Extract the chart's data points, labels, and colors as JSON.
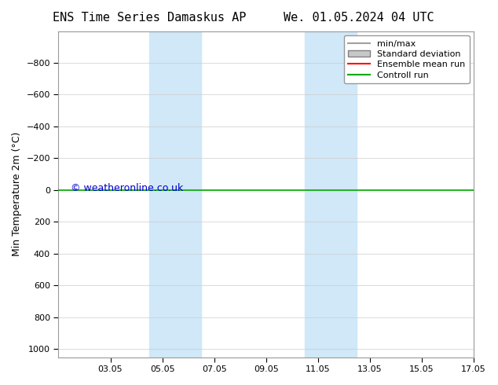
{
  "title_left": "ENS Time Series Damaskus AP",
  "title_right": "We. 01.05.2024 04 UTC",
  "ylabel": "Min Temperature 2m (°C)",
  "ylim": [
    -1000,
    1050
  ],
  "yticks": [
    -800,
    -600,
    -400,
    -200,
    0,
    200,
    400,
    600,
    800,
    1000
  ],
  "xtick_labels": [
    "03.05",
    "05.05",
    "07.05",
    "09.05",
    "11.05",
    "13.05",
    "15.05",
    "17.05"
  ],
  "xtick_positions": [
    2,
    4,
    6,
    8,
    10,
    12,
    14,
    16
  ],
  "xlim": [
    0,
    16
  ],
  "shaded_bands": [
    {
      "x_start": 3.5,
      "x_end": 5.5
    },
    {
      "x_start": 9.5,
      "x_end": 11.5
    }
  ],
  "line_value": 0,
  "watermark": "© weatheronline.co.uk",
  "watermark_color": "#0000cc",
  "background_color": "#ffffff",
  "plot_bg_color": "#ffffff",
  "shade_color": "#d0e8f8",
  "grid_color": "#cccccc",
  "ensemble_mean_color": "#ff0000",
  "control_run_color": "#00aa00",
  "minmax_color": "#a0a0a0",
  "stddev_color": "#c8c8c8",
  "legend_labels": [
    "min/max",
    "Standard deviation",
    "Ensemble mean run",
    "Controll run"
  ],
  "legend_colors": [
    "#a0a0a0",
    "#c8c8c8",
    "#ff0000",
    "#00aa00"
  ]
}
